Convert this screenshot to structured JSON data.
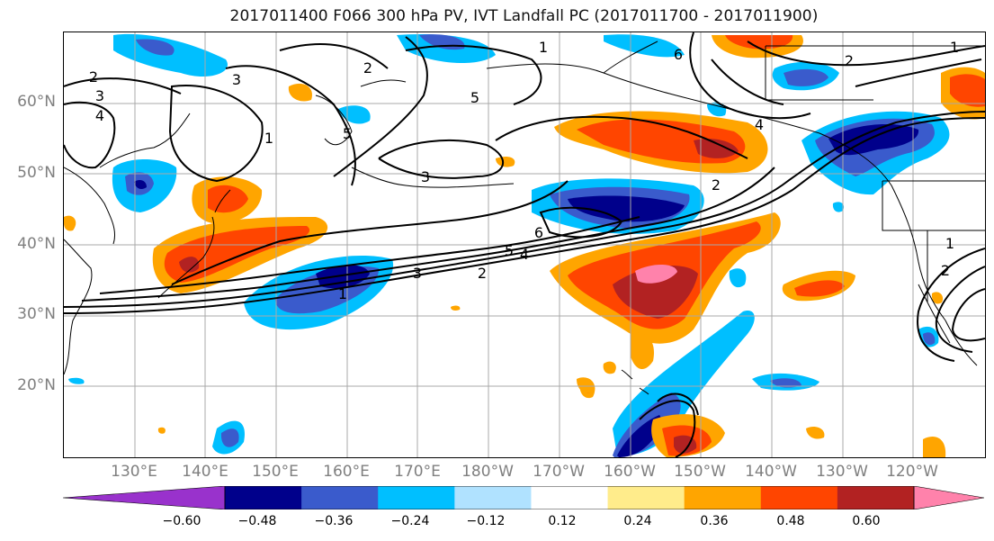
{
  "title": "2017011400 F066 300 hPa PV, IVT Landfall PC (2017011700 - 2017011900)",
  "lat_labels": [
    "60°N",
    "50°N",
    "40°N",
    "30°N",
    "20°N"
  ],
  "lon_labels": [
    "130°E",
    "140°E",
    "150°E",
    "160°E",
    "170°E",
    "180°W",
    "170°W",
    "160°W",
    "150°W",
    "140°W",
    "130°W",
    "120°W"
  ],
  "colorbar": {
    "ticks": [
      "−0.60",
      "−0.48",
      "−0.36",
      "−0.24",
      "−0.12",
      "0.12",
      "0.24",
      "0.36",
      "0.48",
      "0.60"
    ],
    "colors": [
      "#9932cc",
      "#00008b",
      "#3a5bcc",
      "#00bfff",
      "#b0e2ff",
      "#ffffff",
      "#ffec8b",
      "#ffa500",
      "#ff4500",
      "#b22222",
      "#ff82ab"
    ]
  },
  "contour_labels": [
    "1",
    "2",
    "3",
    "4",
    "5",
    "6"
  ]
}
